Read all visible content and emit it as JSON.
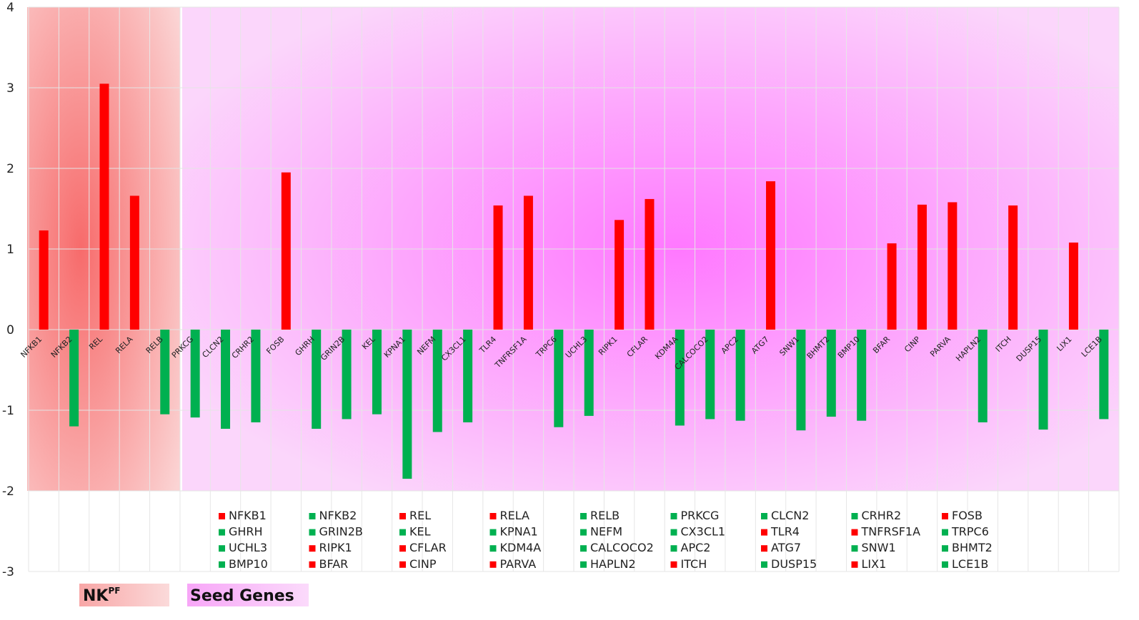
{
  "chart_data": {
    "type": "bar",
    "title": "",
    "xlabel": "",
    "ylabel": "",
    "ylim": [
      -3,
      4
    ],
    "yticks": [
      4,
      3,
      2,
      1,
      0,
      -1,
      -2,
      -3
    ],
    "grid": true,
    "categories": [
      "NFKB1",
      "NFKB2",
      "REL",
      "RELA",
      "RELB",
      "PRKCG",
      "CLCN2",
      "CRHR2",
      "FOSB",
      "GHRH",
      "GRIN2B",
      "KEL",
      "KPNA1",
      "NEFM",
      "CX3CL1",
      "TLR4",
      "TNFRSF1A",
      "TRPC6",
      "UCHL3",
      "RIPK1",
      "CFLAR",
      "KDM4A",
      "CALCOCO2",
      "APC2",
      "ATG7",
      "SNW1",
      "BHMT2",
      "BMP10",
      "BFAR",
      "CINP",
      "PARVA",
      "HAPLN2",
      "ITCH",
      "DUSP15",
      "LIX1",
      "LCE1B"
    ],
    "values": [
      1.23,
      -1.2,
      3.05,
      1.66,
      -1.05,
      -1.09,
      -1.23,
      -1.15,
      1.95,
      -1.23,
      -1.11,
      -1.05,
      -1.85,
      -1.27,
      -1.15,
      1.54,
      1.66,
      -1.21,
      -1.07,
      1.36,
      1.62,
      -1.19,
      -1.11,
      -1.13,
      1.84,
      -1.25,
      -1.08,
      -1.13,
      1.07,
      1.55,
      1.58,
      -1.15,
      1.54,
      -1.24,
      1.08,
      -1.11
    ],
    "positive_color": "#ff0000",
    "negative_color": "#00b050",
    "regions": [
      {
        "label": "NK",
        "superscript": "PF",
        "from": "NFKB1",
        "to": "RELB",
        "color": "#f76b6b"
      },
      {
        "label": "Seed Genes",
        "from": "PRKCG",
        "to": "LCE1B",
        "color": "#f46af4"
      }
    ],
    "legend": {
      "placement": "bottom",
      "columns": [
        [
          "NFKB1",
          "GHRH",
          "UCHL3",
          "BMP10"
        ],
        [
          "NFKB2",
          "GRIN2B",
          "RIPK1",
          "BFAR"
        ],
        [
          "REL",
          "KEL",
          "CFLAR",
          "CINP"
        ],
        [
          "RELA",
          "KPNA1",
          "KDM4A",
          "PARVA"
        ],
        [
          "RELB",
          "NEFM",
          "CALCOCO2",
          "HAPLN2"
        ],
        [
          "PRKCG",
          "CX3CL1",
          "APC2",
          "ITCH"
        ],
        [
          "CLCN2",
          "TLR4",
          "ATG7",
          "DUSP15"
        ],
        [
          "CRHR2",
          "TNFRSF1A",
          "SNW1",
          "LIX1"
        ],
        [
          "FOSB",
          "TRPC6",
          "BHMT2",
          "LCE1B"
        ]
      ]
    }
  }
}
